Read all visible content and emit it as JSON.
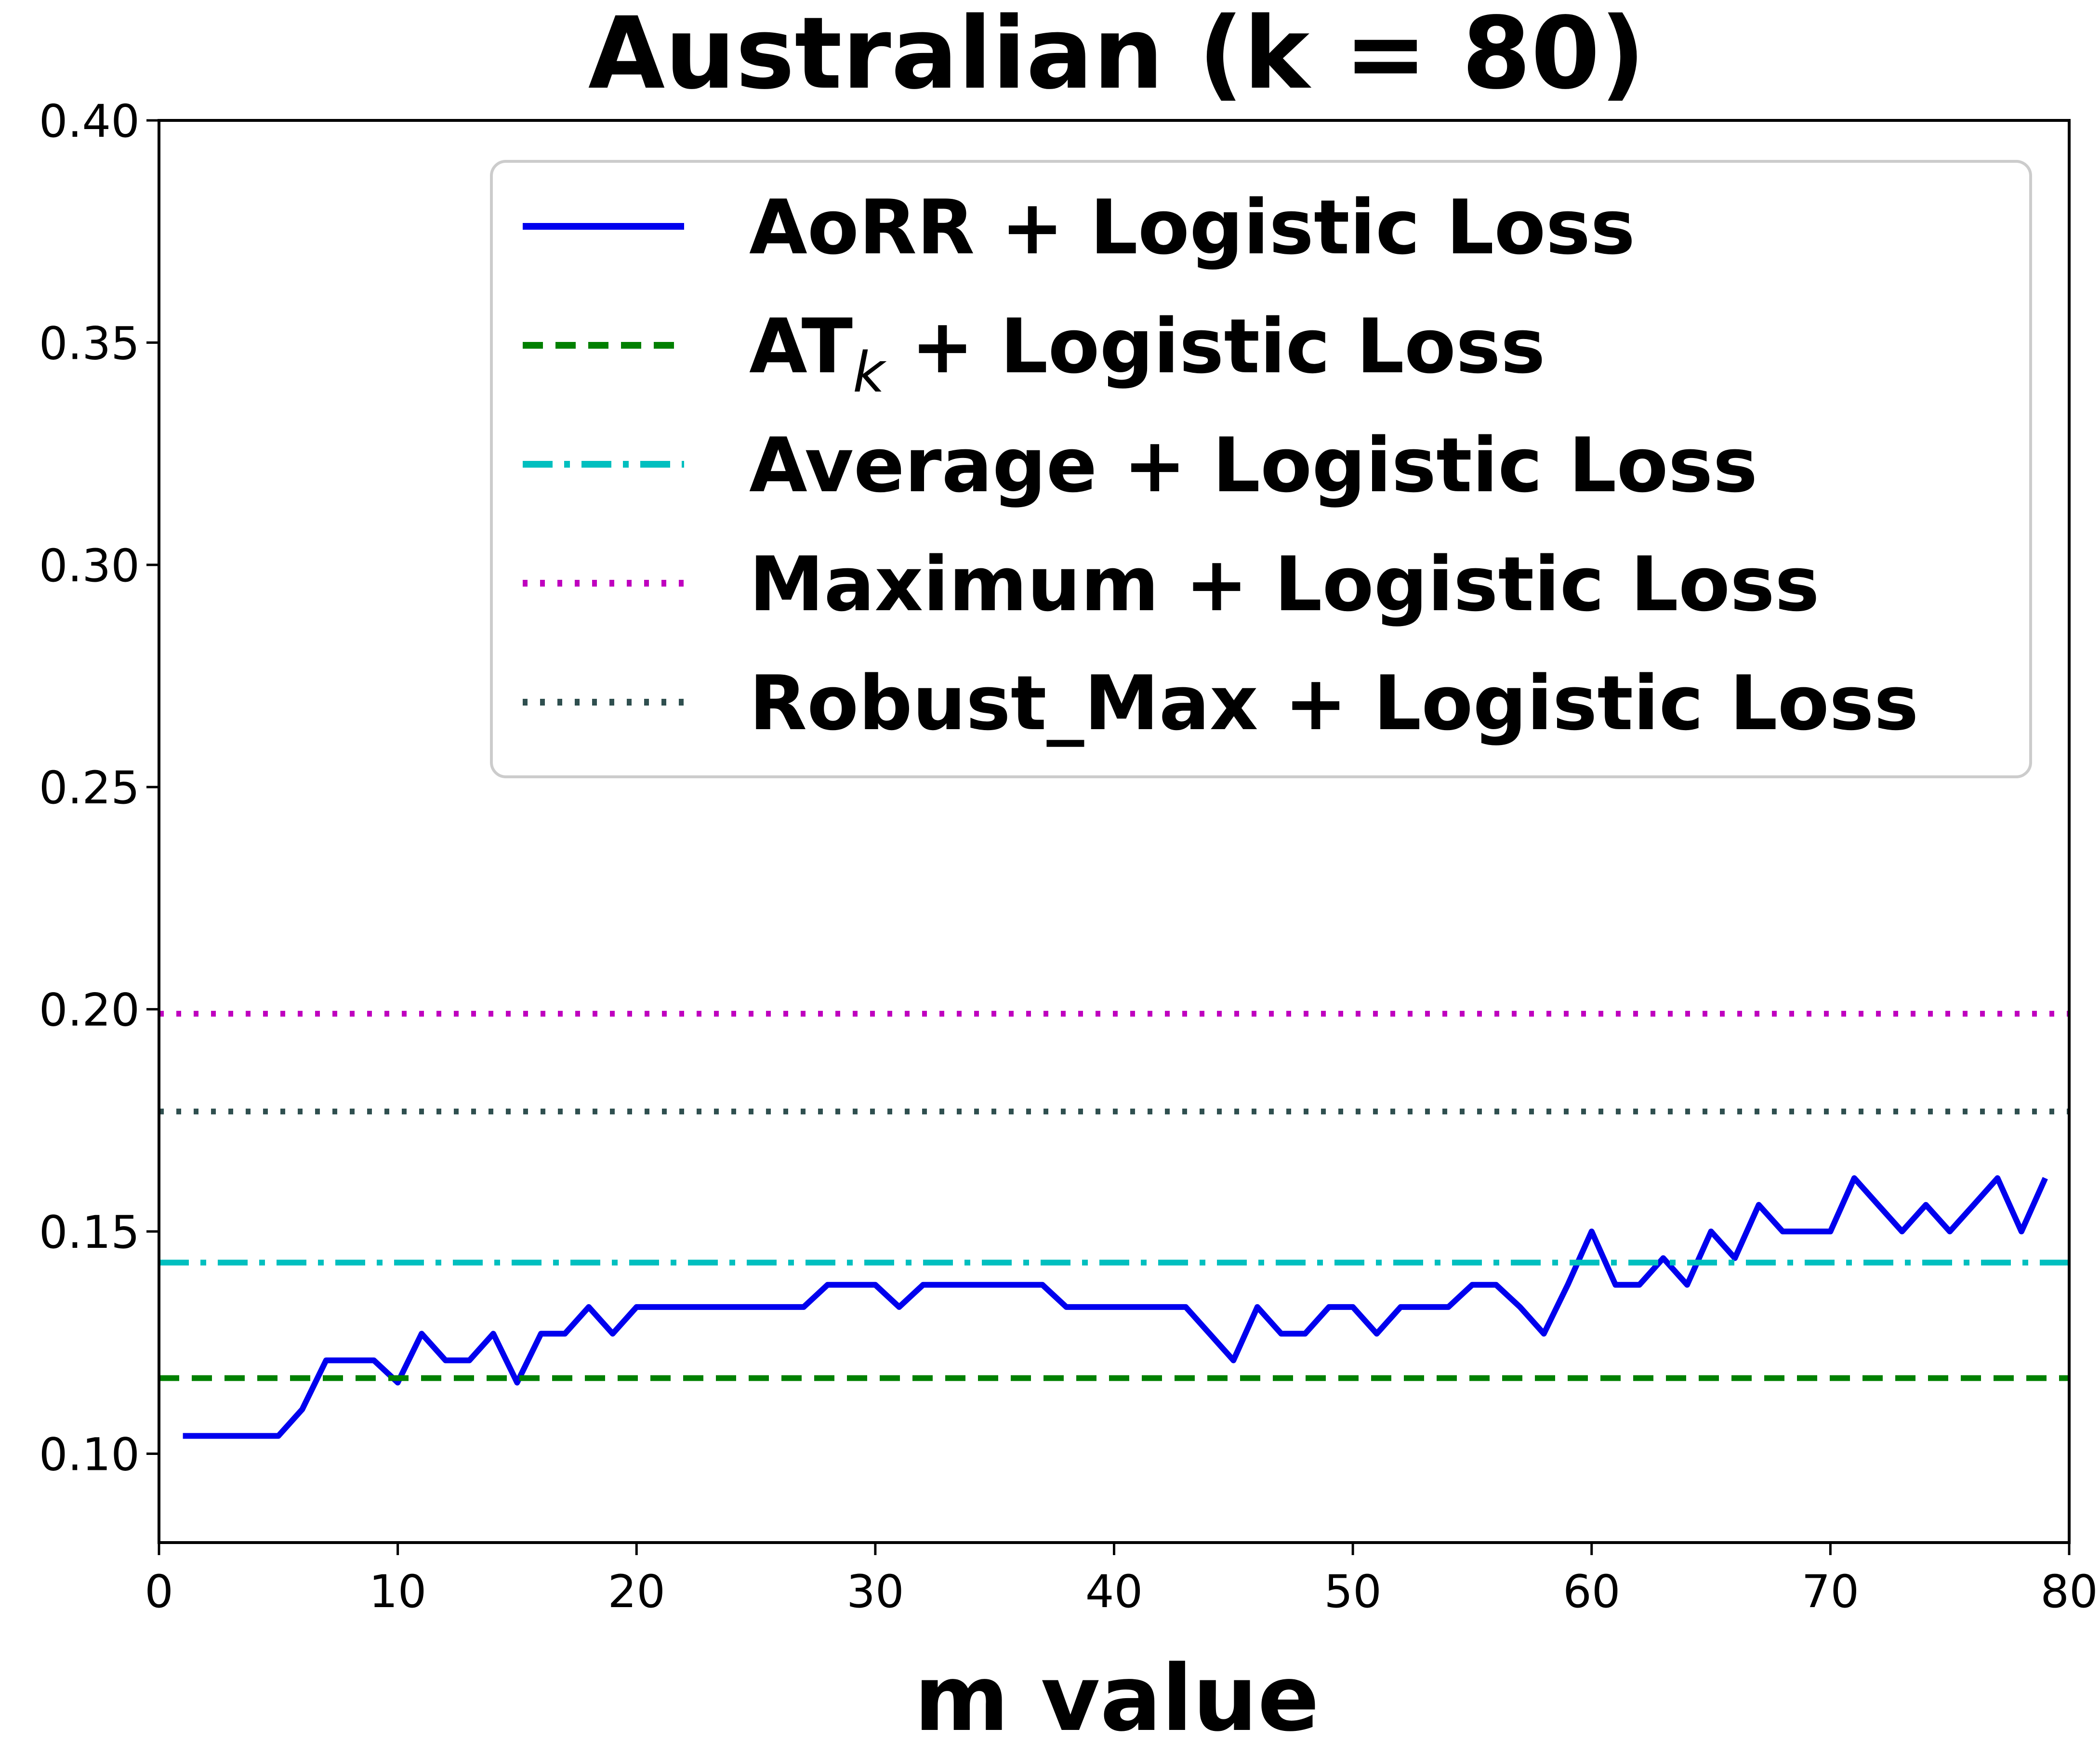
{
  "chart_data": {
    "type": "line",
    "title": "Australian (k = 80)",
    "xlabel": "m value",
    "ylabel": "",
    "xlim": [
      0,
      80
    ],
    "ylim": [
      0.08,
      0.4
    ],
    "xticks": [
      "0",
      "10",
      "20",
      "30",
      "40",
      "50",
      "60",
      "70",
      "80"
    ],
    "yticks": [
      "0.10",
      "0.15",
      "0.20",
      "0.25",
      "0.30",
      "0.35",
      "0.40"
    ],
    "grid": false,
    "legend_position": "upper-right",
    "series": [
      {
        "name": "AoRR + Logistic Loss",
        "legend_main": "AoRR + Logistic Loss",
        "legend_sub": "",
        "legend_tail": "",
        "color": "#0000ee",
        "style": "solid",
        "x": [
          1,
          2,
          3,
          4,
          5,
          6,
          7,
          8,
          9,
          10,
          11,
          12,
          13,
          14,
          15,
          16,
          17,
          18,
          19,
          20,
          21,
          22,
          23,
          24,
          25,
          26,
          27,
          28,
          29,
          30,
          31,
          32,
          33,
          34,
          35,
          36,
          37,
          38,
          39,
          40,
          41,
          42,
          43,
          44,
          45,
          46,
          47,
          48,
          49,
          50,
          51,
          52,
          53,
          54,
          55,
          56,
          57,
          58,
          59,
          60,
          61,
          62,
          63,
          64,
          65,
          66,
          67,
          68,
          69,
          70,
          71,
          72,
          73,
          74,
          75,
          76,
          77,
          78,
          79
        ],
        "y": [
          0.104,
          0.104,
          0.104,
          0.104,
          0.104,
          0.11,
          0.121,
          0.121,
          0.121,
          0.116,
          0.127,
          0.121,
          0.121,
          0.127,
          0.116,
          0.127,
          0.127,
          0.133,
          0.127,
          0.133,
          0.133,
          0.133,
          0.133,
          0.133,
          0.133,
          0.133,
          0.133,
          0.138,
          0.138,
          0.138,
          0.133,
          0.138,
          0.138,
          0.138,
          0.138,
          0.138,
          0.138,
          0.133,
          0.133,
          0.133,
          0.133,
          0.133,
          0.133,
          0.127,
          0.121,
          0.133,
          0.127,
          0.127,
          0.133,
          0.133,
          0.127,
          0.133,
          0.133,
          0.133,
          0.138,
          0.138,
          0.133,
          0.127,
          0.138,
          0.15,
          0.138,
          0.138,
          0.144,
          0.138,
          0.15,
          0.144,
          0.156,
          0.15,
          0.15,
          0.15,
          0.162,
          0.156,
          0.15,
          0.156,
          0.15,
          0.156,
          0.162,
          0.15,
          0.162
        ]
      },
      {
        "name": "ATk + Logistic Loss",
        "legend_main": "AT",
        "legend_sub": "k",
        "legend_tail": " + Logistic Loss",
        "color": "#008000",
        "style": "dashed",
        "value": 0.117
      },
      {
        "name": "Average + Logistic Loss",
        "legend_main": "Average + Logistic Loss",
        "legend_sub": "",
        "legend_tail": "",
        "color": "#00bfbf",
        "style": "dashdot",
        "value": 0.143
      },
      {
        "name": "Maximum + Logistic Loss",
        "legend_main": "Maximum + Logistic Loss",
        "legend_sub": "",
        "legend_tail": "",
        "color": "#bf00bf",
        "style": "dotted",
        "value": 0.199
      },
      {
        "name": "Robust_Max + Logistic Loss",
        "legend_main": "Robust_Max + Logistic Loss",
        "legend_sub": "",
        "legend_tail": "",
        "color": "#2f4f4f",
        "style": "dotted",
        "value": 0.177
      }
    ]
  }
}
